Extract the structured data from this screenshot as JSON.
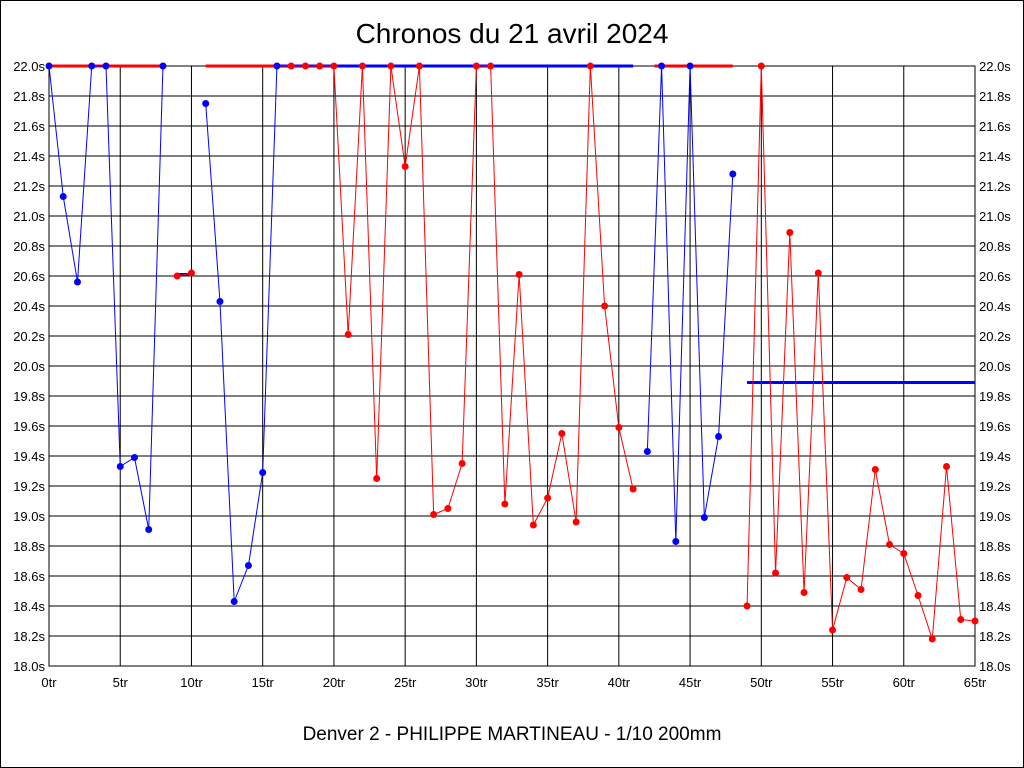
{
  "chart_data": {
    "type": "line",
    "title": "Chronos du 21 avril 2024",
    "subtitle": "Denver 2 - PHILIPPE MARTINEAU - 1/10 200mm",
    "xlabel": "",
    "ylabel": "",
    "xlim": [
      0,
      65
    ],
    "ylim": [
      18.0,
      22.0
    ],
    "grid": true,
    "x_ticks": [
      0,
      5,
      10,
      15,
      20,
      25,
      30,
      35,
      40,
      45,
      50,
      55,
      60,
      65
    ],
    "x_tick_labels": [
      "0tr",
      "5tr",
      "10tr",
      "15tr",
      "20tr",
      "25tr",
      "30tr",
      "35tr",
      "40tr",
      "45tr",
      "50tr",
      "55tr",
      "60tr",
      "65tr"
    ],
    "y_ticks": [
      18.0,
      18.2,
      18.4,
      18.6,
      18.8,
      19.0,
      19.2,
      19.4,
      19.6,
      19.8,
      20.0,
      20.2,
      20.4,
      20.6,
      20.8,
      21.0,
      21.2,
      21.4,
      21.6,
      21.8,
      22.0
    ],
    "y_tick_labels": [
      "18.0s",
      "18.2s",
      "18.4s",
      "18.6s",
      "18.8s",
      "19.0s",
      "19.2s",
      "19.4s",
      "19.6s",
      "19.8s",
      "20.0s",
      "20.2s",
      "20.4s",
      "20.6s",
      "20.8s",
      "21.0s",
      "21.2s",
      "21.4s",
      "21.6s",
      "21.8s",
      "22.0s"
    ],
    "colors": {
      "blue": "#0000ff",
      "red": "#ff0000",
      "grid": "#000000"
    },
    "points": {
      "x": [
        0,
        1,
        2,
        3,
        4,
        5,
        6,
        7,
        8,
        9,
        10,
        11,
        12,
        13,
        14,
        15,
        16,
        17,
        18,
        19,
        20,
        21,
        22,
        23,
        24,
        25,
        26,
        27,
        28,
        29,
        30,
        31,
        32,
        33,
        34,
        35,
        36,
        37,
        38,
        39,
        40,
        41,
        42,
        43,
        44,
        45,
        46,
        47,
        48,
        49,
        50,
        51,
        52,
        53,
        54,
        55,
        56,
        57,
        58,
        59,
        60,
        61,
        62,
        63,
        64,
        65
      ],
      "y": [
        22.0,
        21.13,
        20.56,
        22.0,
        22.0,
        19.33,
        19.39,
        18.91,
        22.0,
        20.6,
        20.62,
        21.75,
        20.43,
        18.43,
        18.67,
        19.29,
        22.0,
        22.0,
        22.0,
        22.0,
        22.0,
        20.21,
        22.0,
        19.25,
        22.0,
        21.33,
        22.0,
        19.01,
        19.05,
        19.35,
        22.0,
        22.0,
        19.08,
        20.61,
        18.94,
        19.12,
        19.55,
        18.96,
        22.0,
        20.4,
        19.59,
        19.18,
        19.43,
        22.0,
        18.83,
        22.0,
        18.99,
        19.53,
        21.28,
        18.4,
        22.0,
        18.62,
        20.89,
        18.49,
        20.62,
        18.24,
        18.59,
        18.51,
        19.31,
        18.81,
        18.75,
        18.47,
        18.18,
        19.33,
        18.31,
        18.3
      ],
      "color": [
        "blue",
        "blue",
        "blue",
        "blue",
        "blue",
        "blue",
        "blue",
        "blue",
        "blue",
        "red",
        "red",
        "blue",
        "blue",
        "blue",
        "blue",
        "blue",
        "blue",
        "red",
        "red",
        "red",
        "red",
        "red",
        "red",
        "red",
        "red",
        "red",
        "red",
        "red",
        "red",
        "red",
        "red",
        "red",
        "red",
        "red",
        "red",
        "red",
        "red",
        "red",
        "red",
        "red",
        "red",
        "red",
        "blue",
        "blue",
        "blue",
        "blue",
        "blue",
        "blue",
        "blue",
        "red",
        "red",
        "red",
        "red",
        "red",
        "red",
        "red",
        "red",
        "red",
        "red",
        "red",
        "red",
        "red",
        "red",
        "red",
        "red",
        "red"
      ],
      "breaks_before": [
        9,
        11,
        42,
        49
      ]
    },
    "level_lines": [
      {
        "from": 0,
        "to": 8,
        "value": 22.0,
        "color": "red"
      },
      {
        "from": 9,
        "to": 10,
        "value": 20.61,
        "color": "blue"
      },
      {
        "from": 11,
        "to": 16,
        "value": 22.0,
        "color": "red"
      },
      {
        "from": 16,
        "to": 41,
        "value": 22.0,
        "color": "blue"
      },
      {
        "from": 42.5,
        "to": 48,
        "value": 22.0,
        "color": "red"
      },
      {
        "from": 49,
        "to": 65,
        "value": 19.89,
        "color": "blue"
      }
    ]
  }
}
